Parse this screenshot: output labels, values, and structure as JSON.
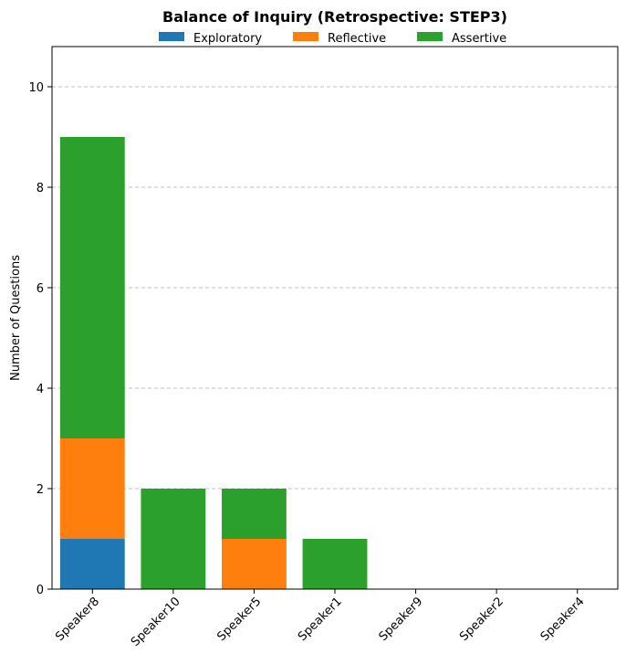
{
  "chart_data": {
    "type": "bar",
    "stacked": true,
    "title": "Balance of Inquiry (Retrospective: STEP3)",
    "xlabel": "",
    "ylabel": "Number of Questions",
    "categories": [
      "Speaker8",
      "Speaker10",
      "Speaker5",
      "Speaker1",
      "Speaker9",
      "Speaker2",
      "Speaker4"
    ],
    "series": [
      {
        "name": "Exploratory",
        "color": "#1f77b4",
        "values": [
          1,
          0,
          0,
          0,
          0,
          0,
          0
        ]
      },
      {
        "name": "Reflective",
        "color": "#ff7f0e",
        "values": [
          2,
          0,
          1,
          0,
          0,
          0,
          0
        ]
      },
      {
        "name": "Assertive",
        "color": "#2ca02c",
        "values": [
          6,
          2,
          1,
          1,
          0,
          0,
          0
        ]
      }
    ],
    "ylim": [
      0,
      10.8
    ],
    "yticks": [
      0,
      2,
      4,
      6,
      8,
      10
    ],
    "grid": "y-dashed",
    "legend": "top-center"
  }
}
